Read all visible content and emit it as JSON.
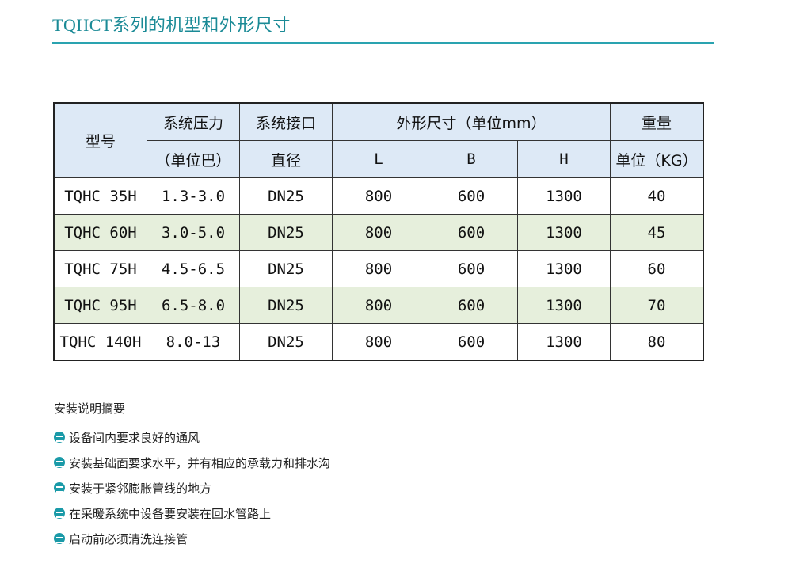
{
  "title": "TQHCT系列的机型和外形尺寸",
  "table": {
    "headers": {
      "model": "型号",
      "pressure_1": "系统压力",
      "pressure_2": "（单位巴）",
      "port_1": "系统接口",
      "port_2": "直径",
      "dims": "外形尺寸（单位mm）",
      "L": "L",
      "B": "B",
      "H": "H",
      "weight_1": "重量",
      "weight_2": "单位（KG）"
    },
    "rows": [
      [
        "TQHC 35H",
        "1.3-3.0",
        "DN25",
        "800",
        "600",
        "1300",
        "40"
      ],
      [
        "TQHC 60H",
        "3.0-5.0",
        "DN25",
        "800",
        "600",
        "1300",
        "45"
      ],
      [
        "TQHC 75H",
        "4.5-6.5",
        "DN25",
        "800",
        "600",
        "1300",
        "60"
      ],
      [
        "TQHC 95H",
        "6.5-8.0",
        "DN25",
        "800",
        "600",
        "1300",
        "70"
      ],
      [
        "TQHC 140H",
        "8.0-13",
        "DN25",
        "800",
        "600",
        "1300",
        "80"
      ]
    ]
  },
  "colors": {
    "title": "#1a8a96",
    "header_fill": "#dde9f6",
    "alt_row_fill": "#e6efdc",
    "bullet": "#1a9aa8"
  },
  "notes": {
    "heading": "安装说明摘要",
    "items": [
      "设备间内要求良好的通风",
      "安装基础面要求水平，并有相应的承载力和排水沟",
      "安装于紧邻膨胀管线的地方",
      "在采暖系统中设备要安装在回水管路上",
      "启动前必须清洗连接管"
    ]
  }
}
